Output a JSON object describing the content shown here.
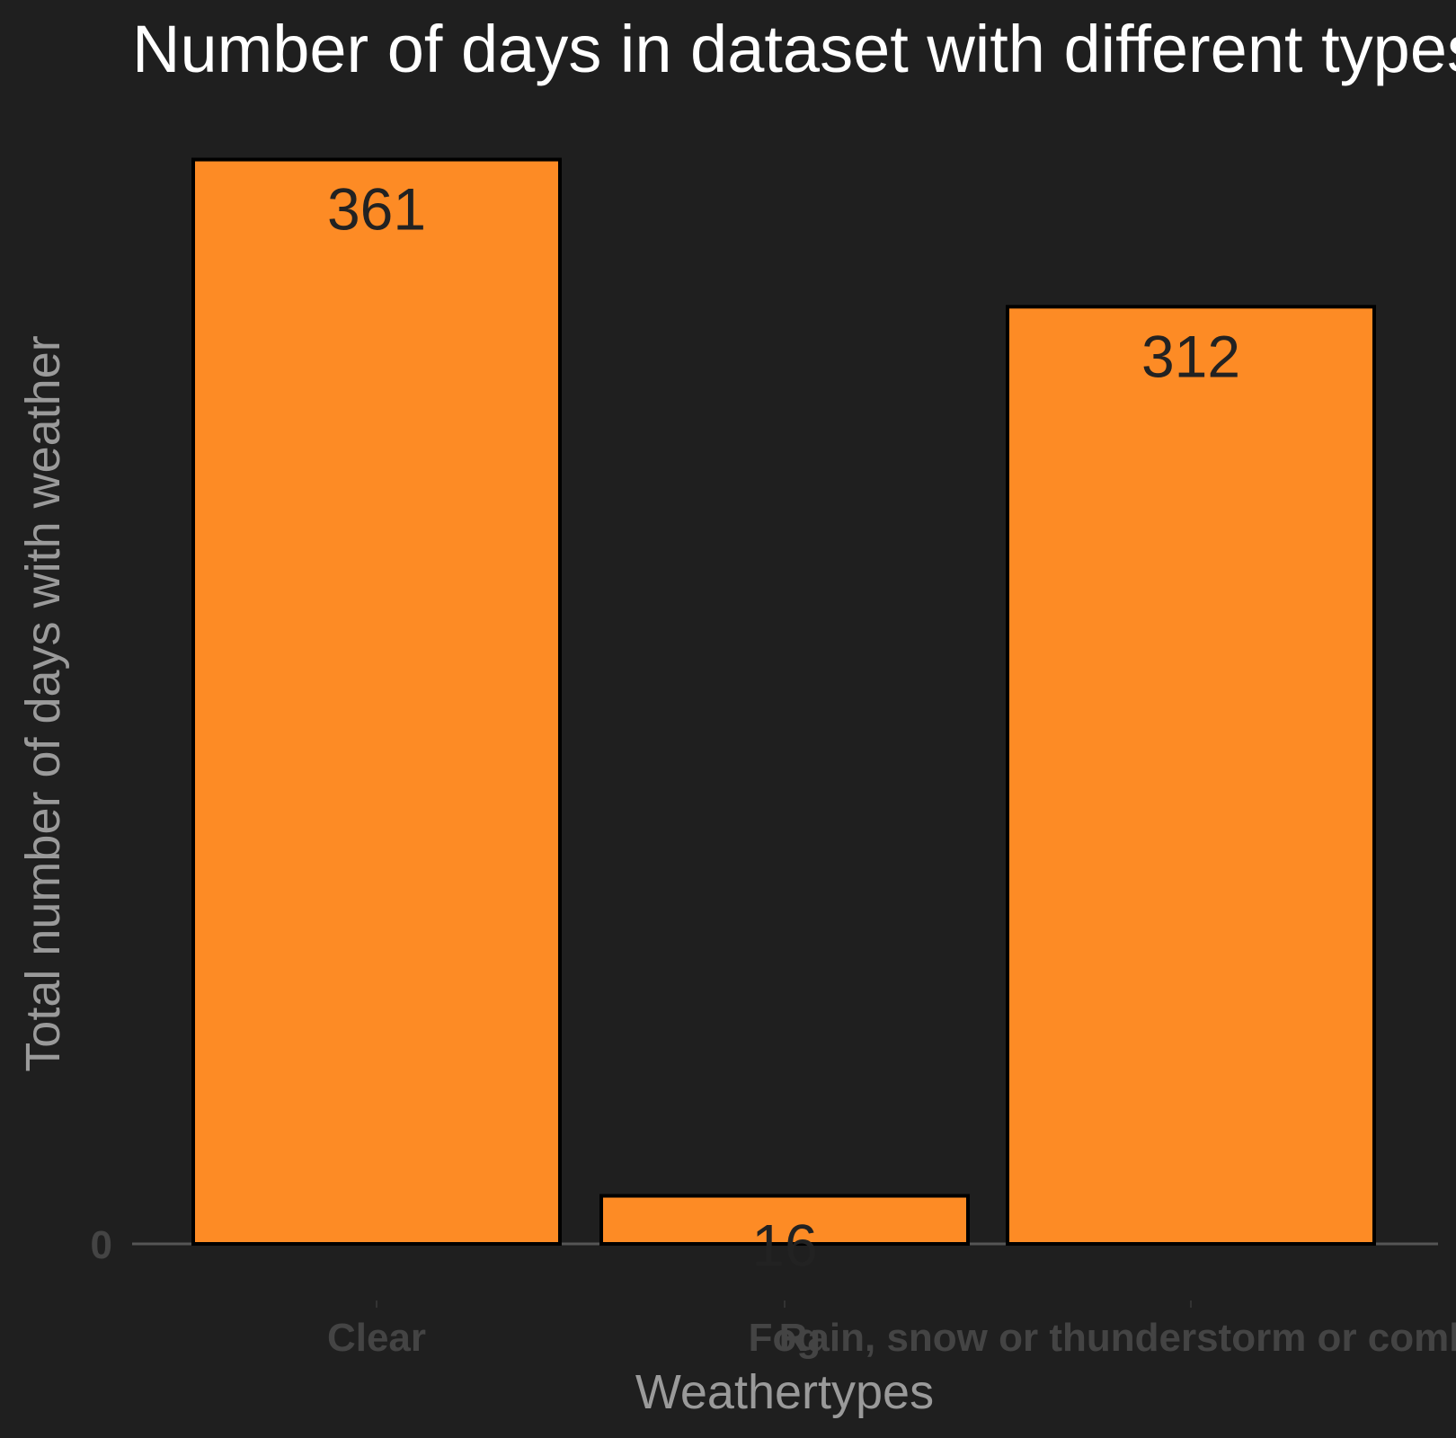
{
  "chart_data": {
    "type": "bar",
    "title": "Number of days in dataset with different types of weather",
    "xlabel": "Weathertypes",
    "ylabel": "Total number of days with weather",
    "categories": [
      "Clear",
      "Fog",
      "Rain, snow or thunderstorm or combination"
    ],
    "values": [
      361,
      16,
      312
    ],
    "data_labels": [
      "361",
      "16",
      "312"
    ],
    "y_ticks": [
      "0"
    ],
    "ylim": [
      0,
      380
    ],
    "grid": false,
    "legend": "none",
    "colors": {
      "background": "#1f1f1f",
      "bar_fill": "#fd8b25",
      "bar_outline": "#000000",
      "title": "#ffffff",
      "axis_title": "#9a9a9a",
      "tick_label": "#444444",
      "value_label": "#222222",
      "baseline": "#555555"
    }
  }
}
